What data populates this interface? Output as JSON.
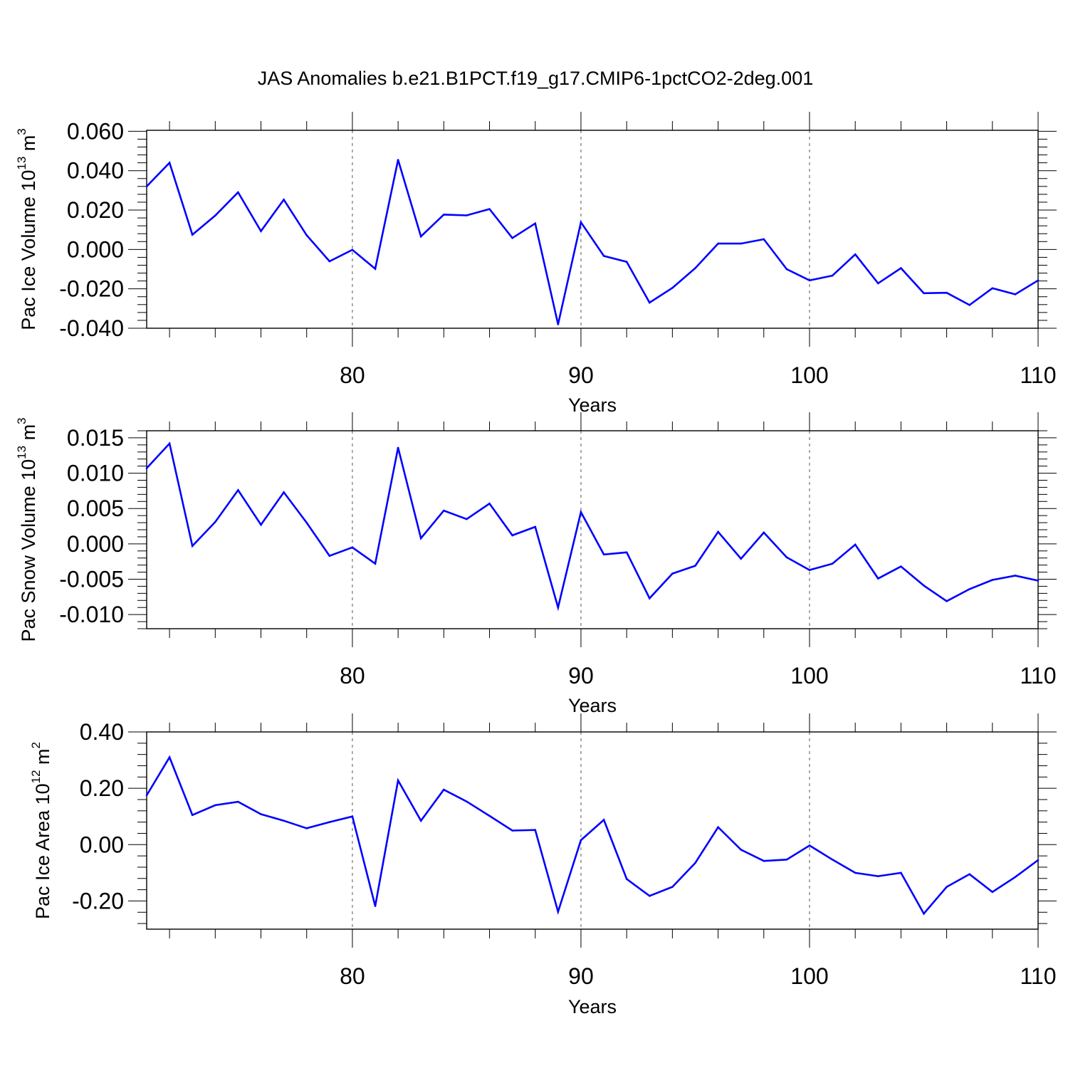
{
  "title": "JAS Anomalies b.e21.B1PCT.f19_g17.CMIP6-1pctCO2-2deg.001",
  "line_color": "#0000ff",
  "chart_data": [
    {
      "type": "line",
      "ylabel_main": "Pac Ice Volume 10",
      "ylabel_exp": "13",
      "ylabel_unit": " m",
      "ylabel_unit_exp": "3",
      "xlabel": "Years",
      "xlim": [
        71,
        110
      ],
      "ylim": [
        -0.04,
        0.0605
      ],
      "yticks": [
        -0.04,
        -0.02,
        0.0,
        0.02,
        0.04,
        0.06
      ],
      "ytick_labels": [
        "-0.040",
        "-0.020",
        "0.000",
        "0.020",
        "0.040",
        "0.060"
      ],
      "xticks": [
        80,
        90,
        100,
        110
      ],
      "xtick_labels": [
        "80",
        "90",
        "100",
        "110"
      ],
      "grid_x": [
        80,
        90,
        100
      ],
      "x": [
        71,
        72,
        73,
        74,
        75,
        76,
        77,
        78,
        79,
        80,
        81,
        82,
        83,
        84,
        85,
        86,
        87,
        88,
        89,
        90,
        91,
        92,
        93,
        94,
        95,
        96,
        97,
        98,
        99,
        100,
        101,
        102,
        103,
        104,
        105,
        106,
        107,
        108,
        109,
        110
      ],
      "values": [
        0.032,
        0.044,
        0.0075,
        0.0172,
        0.029,
        0.0093,
        0.0253,
        0.0072,
        -0.006,
        -0.0002,
        -0.0098,
        0.0455,
        0.0066,
        0.0177,
        0.0173,
        0.0205,
        0.0058,
        0.0132,
        -0.038,
        0.0138,
        -0.0033,
        -0.0063,
        -0.027,
        -0.0195,
        -0.0095,
        0.003,
        0.003,
        0.0052,
        -0.01,
        -0.0157,
        -0.0133,
        -0.0025,
        -0.0172,
        -0.0095,
        -0.0222,
        -0.022,
        -0.0282,
        -0.0197,
        -0.0228,
        -0.0157
      ]
    },
    {
      "type": "line",
      "ylabel_main": "Pac Snow Volume 10",
      "ylabel_exp": "13",
      "ylabel_unit": " m",
      "ylabel_unit_exp": "3",
      "xlabel": "Years",
      "xlim": [
        71,
        110
      ],
      "ylim": [
        -0.012,
        0.016
      ],
      "yticks": [
        -0.01,
        -0.005,
        0.0,
        0.005,
        0.01,
        0.015
      ],
      "ytick_labels": [
        "-0.010",
        "-0.005",
        "0.000",
        "0.005",
        "0.010",
        "0.015"
      ],
      "xticks": [
        80,
        90,
        100,
        110
      ],
      "xtick_labels": [
        "80",
        "90",
        "100",
        "110"
      ],
      "grid_x": [
        80,
        90,
        100
      ],
      "x": [
        71,
        72,
        73,
        74,
        75,
        76,
        77,
        78,
        79,
        80,
        81,
        82,
        83,
        84,
        85,
        86,
        87,
        88,
        89,
        90,
        91,
        92,
        93,
        94,
        95,
        96,
        97,
        98,
        99,
        100,
        101,
        102,
        103,
        104,
        105,
        106,
        107,
        108,
        109,
        110
      ],
      "values": [
        0.0107,
        0.0142,
        -0.0003,
        0.0031,
        0.0076,
        0.0027,
        0.0073,
        0.003,
        -0.0017,
        -0.0005,
        -0.0028,
        0.0136,
        0.0008,
        0.0047,
        0.0035,
        0.0057,
        0.0012,
        0.0024,
        -0.009,
        0.0045,
        -0.0015,
        -0.0012,
        -0.0077,
        -0.0042,
        -0.0031,
        0.0017,
        -0.0021,
        0.0016,
        -0.0019,
        -0.0037,
        -0.0028,
        -0.0001,
        -0.0049,
        -0.0032,
        -0.0059,
        -0.0081,
        -0.0064,
        -0.0051,
        -0.0045,
        -0.0052
      ]
    },
    {
      "type": "line",
      "ylabel_main": "Pac Ice Area 10",
      "ylabel_exp": "12",
      "ylabel_unit": " m",
      "ylabel_unit_exp": "2",
      "xlabel": "Years",
      "xlim": [
        71,
        110
      ],
      "ylim": [
        -0.3,
        0.4
      ],
      "yticks": [
        -0.2,
        0.0,
        0.2,
        0.4
      ],
      "ytick_labels": [
        "-0.20",
        "0.00",
        "0.20",
        "0.40"
      ],
      "xticks": [
        80,
        90,
        100,
        110
      ],
      "xtick_labels": [
        "80",
        "90",
        "100",
        "110"
      ],
      "grid_x": [
        80,
        90,
        100
      ],
      "x": [
        71,
        72,
        73,
        74,
        75,
        76,
        77,
        78,
        79,
        80,
        81,
        82,
        83,
        84,
        85,
        86,
        87,
        88,
        89,
        90,
        91,
        92,
        93,
        94,
        95,
        96,
        97,
        98,
        99,
        100,
        101,
        102,
        103,
        104,
        105,
        106,
        107,
        108,
        109,
        110
      ],
      "values": [
        0.175,
        0.31,
        0.105,
        0.14,
        0.152,
        0.108,
        0.085,
        0.058,
        0.08,
        0.1,
        -0.218,
        0.228,
        0.085,
        0.195,
        0.153,
        0.102,
        0.05,
        0.052,
        -0.238,
        0.016,
        0.088,
        -0.122,
        -0.182,
        -0.15,
        -0.065,
        0.062,
        -0.018,
        -0.058,
        -0.053,
        -0.003,
        -0.053,
        -0.1,
        -0.112,
        -0.1,
        -0.245,
        -0.15,
        -0.105,
        -0.168,
        -0.115,
        -0.055
      ]
    }
  ]
}
